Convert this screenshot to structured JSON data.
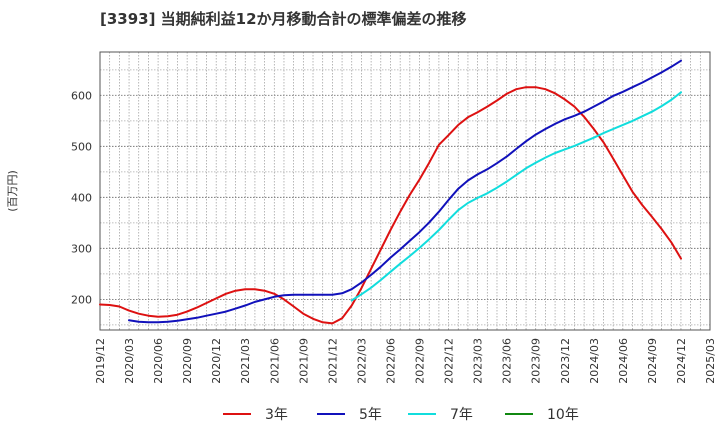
{
  "chart_data": {
    "type": "line",
    "title": "[3393]  当期純利益12か月移動合計の標準偏差の推移",
    "ylabel": "(百万円)",
    "xlabel": "",
    "ylim": [
      140,
      685
    ],
    "yticks": [
      200,
      300,
      400,
      500,
      600
    ],
    "xticks": [
      "2019/12",
      "2020/03",
      "2020/06",
      "2020/09",
      "2020/12",
      "2021/03",
      "2021/06",
      "2021/09",
      "2021/12",
      "2022/03",
      "2022/06",
      "2022/09",
      "2022/12",
      "2023/03",
      "2023/06",
      "2023/09",
      "2023/12",
      "2024/03",
      "2024/06",
      "2024/09",
      "2024/12",
      "2025/03"
    ],
    "grid": true,
    "legend_position": "bottom",
    "series": [
      {
        "name": "3年",
        "color": "#dd1111",
        "x": [
          "2019/12",
          "2020/01",
          "2020/02",
          "2020/03",
          "2020/04",
          "2020/05",
          "2020/06",
          "2020/07",
          "2020/08",
          "2020/09",
          "2020/10",
          "2020/11",
          "2020/12",
          "2021/01",
          "2021/02",
          "2021/03",
          "2021/04",
          "2021/05",
          "2021/06",
          "2021/07",
          "2021/08",
          "2021/09",
          "2021/10",
          "2021/11",
          "2021/12",
          "2022/01",
          "2022/02",
          "2022/03",
          "2022/04",
          "2022/05",
          "2022/06",
          "2022/07",
          "2022/08",
          "2022/09",
          "2022/10",
          "2022/11",
          "2022/12",
          "2023/01",
          "2023/02",
          "2023/03",
          "2023/04",
          "2023/05",
          "2023/06",
          "2023/07",
          "2023/08",
          "2023/09",
          "2023/10",
          "2023/11",
          "2023/12",
          "2024/01",
          "2024/02",
          "2024/03",
          "2024/04",
          "2024/05",
          "2024/06",
          "2024/07",
          "2024/08",
          "2024/09",
          "2024/10",
          "2024/11",
          "2024/12"
        ],
        "values": [
          190,
          189,
          186,
          178,
          172,
          168,
          166,
          167,
          170,
          176,
          184,
          193,
          202,
          211,
          217,
          220,
          220,
          217,
          211,
          200,
          186,
          172,
          162,
          155,
          153,
          163,
          188,
          222,
          260,
          298,
          336,
          372,
          405,
          435,
          468,
          503,
          522,
          542,
          557,
          567,
          578,
          590,
          603,
          612,
          616,
          616,
          612,
          604,
          592,
          578,
          558,
          534,
          508,
          476,
          443,
          411,
          385,
          362,
          338,
          312,
          280
        ]
      },
      {
        "name": "5年",
        "color": "#1111bb",
        "x": [
          "2020/03",
          "2020/04",
          "2020/05",
          "2020/06",
          "2020/07",
          "2020/08",
          "2020/09",
          "2020/10",
          "2020/11",
          "2020/12",
          "2021/01",
          "2021/02",
          "2021/03",
          "2021/04",
          "2021/05",
          "2021/06",
          "2021/07",
          "2021/08",
          "2021/09",
          "2021/10",
          "2021/11",
          "2021/12",
          "2022/01",
          "2022/02",
          "2022/03",
          "2022/04",
          "2022/05",
          "2022/06",
          "2022/07",
          "2022/08",
          "2022/09",
          "2022/10",
          "2022/11",
          "2022/12",
          "2023/01",
          "2023/02",
          "2023/03",
          "2023/04",
          "2023/05",
          "2023/06",
          "2023/07",
          "2023/08",
          "2023/09",
          "2023/10",
          "2023/11",
          "2023/12",
          "2024/01",
          "2024/02",
          "2024/03",
          "2024/04",
          "2024/05",
          "2024/06",
          "2024/07",
          "2024/08",
          "2024/09",
          "2024/10",
          "2024/11",
          "2024/12"
        ],
        "values": [
          159,
          156,
          155,
          155,
          156,
          158,
          161,
          164,
          168,
          172,
          176,
          182,
          188,
          195,
          200,
          205,
          208,
          209,
          209,
          209,
          209,
          209,
          212,
          220,
          233,
          248,
          264,
          282,
          298,
          315,
          332,
          351,
          372,
          395,
          417,
          433,
          445,
          455,
          467,
          480,
          495,
          510,
          523,
          534,
          544,
          553,
          560,
          568,
          578,
          588,
          599,
          607,
          616,
          625,
          635,
          645,
          656,
          668
        ]
      },
      {
        "name": "7年",
        "color": "#11dddd",
        "x": [
          "2022/02",
          "2022/03",
          "2022/04",
          "2022/05",
          "2022/06",
          "2022/07",
          "2022/08",
          "2022/09",
          "2022/10",
          "2022/11",
          "2022/12",
          "2023/01",
          "2023/02",
          "2023/03",
          "2023/04",
          "2023/05",
          "2023/06",
          "2023/07",
          "2023/08",
          "2023/09",
          "2023/10",
          "2023/11",
          "2023/12",
          "2024/01",
          "2024/02",
          "2024/03",
          "2024/04",
          "2024/05",
          "2024/06",
          "2024/07",
          "2024/08",
          "2024/09",
          "2024/10",
          "2024/11",
          "2024/12"
        ],
        "values": [
          198,
          210,
          223,
          238,
          254,
          270,
          285,
          301,
          318,
          336,
          356,
          375,
          389,
          399,
          408,
          419,
          431,
          444,
          457,
          468,
          478,
          487,
          494,
          501,
          509,
          517,
          526,
          534,
          542,
          550,
          559,
          568,
          579,
          591,
          606
        ]
      },
      {
        "name": "10年",
        "color": "#118811",
        "x": [],
        "values": []
      }
    ]
  }
}
